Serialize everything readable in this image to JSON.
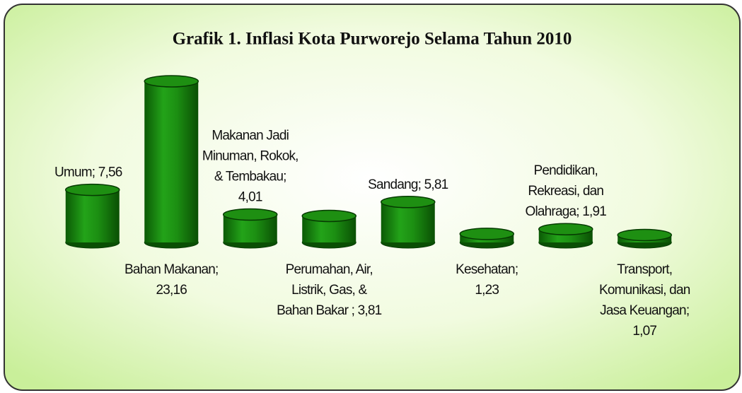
{
  "chart_data": {
    "type": "cylinder-bar",
    "title": "Grafik 1. Inflasi Kota Purworejo Selama Tahun 2010",
    "values": [
      7.56,
      23.16,
      4.01,
      3.81,
      5.81,
      1.23,
      1.91,
      1.07
    ],
    "value_labels": [
      [
        "Umum; 7,56"
      ],
      [
        "Bahan Makanan;",
        "23,16"
      ],
      [
        "Makanan Jadi",
        "Minuman, Rokok,",
        "& Tembakau;",
        "4,01"
      ],
      [
        "Perumahan, Air,",
        "Listrik, Gas, &",
        "Bahan Bakar ; 3,81"
      ],
      [
        "Sandang; 5,81"
      ],
      [
        "Kesehatan;",
        "1,23"
      ],
      [
        "Pendidikan,",
        "Rekreasi, dan",
        "Olahraga; 1,91"
      ],
      [
        "Transport,",
        "Komunikasi, dan",
        "Jasa Keuangan;",
        "1,07"
      ]
    ],
    "color": "#1e8f12"
  }
}
